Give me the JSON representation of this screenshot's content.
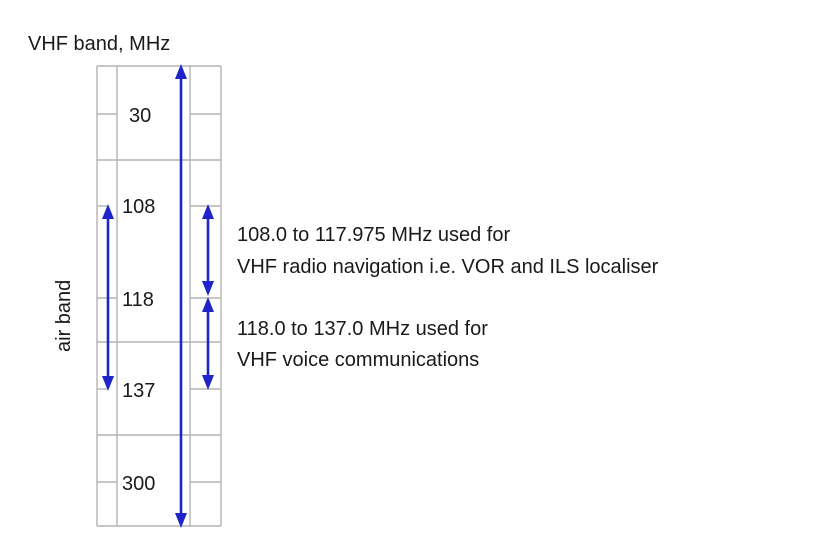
{
  "diagram": {
    "title": "VHF band, MHz",
    "side_label": "air band",
    "frequencies": [
      "30",
      "108",
      "118",
      "137",
      "300"
    ],
    "notes": {
      "navigation_line1": "108.0 to 117.975 MHz used for",
      "navigation_line2": "VHF radio navigation i.e. VOR and ILS localiser",
      "voice_line1": "118.0 to 137.0 MHz used for",
      "voice_line2": "VHF voice communications"
    },
    "colors": {
      "arrow": "#1f25c8",
      "grid": "#b4b4b4",
      "text": "#1a1a1a"
    }
  }
}
